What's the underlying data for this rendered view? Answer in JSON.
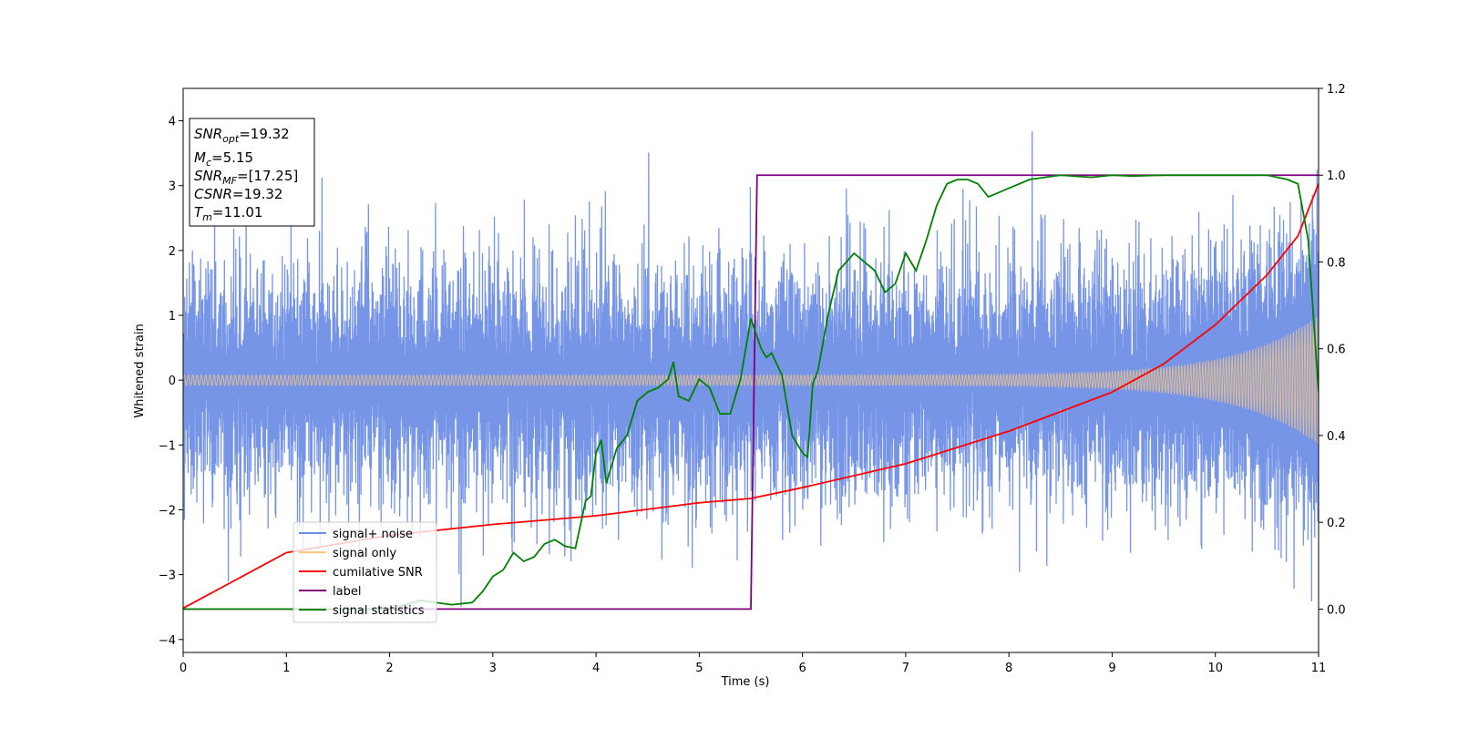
{
  "chart_data": {
    "type": "line",
    "xlabel": "Time (s)",
    "ylabel": "Whitened strain",
    "xlim": [
      0,
      11
    ],
    "ylim": [
      -4.2,
      4.5
    ],
    "y2lim": [
      -0.1,
      1.2
    ],
    "x_ticks": [
      "0",
      "1",
      "2",
      "3",
      "4",
      "5",
      "6",
      "7",
      "8",
      "9",
      "10",
      "11"
    ],
    "y_ticks": [
      "−4",
      "−3",
      "−2",
      "−1",
      "0",
      "1",
      "2",
      "3",
      "4"
    ],
    "y2_ticks": [
      "0.0",
      "0.2",
      "0.4",
      "0.6",
      "0.8",
      "1.0",
      "1.2"
    ],
    "grid": false,
    "legend_placement": "lower-left",
    "info_box": {
      "lines": [
        {
          "base": "SNR",
          "sub": "opt",
          "rest": "=19.32"
        },
        {
          "base": "M",
          "sub": "c",
          "rest": "=5.15"
        },
        {
          "base": "SNR",
          "sub": "MF",
          "rest": "=[17.25]"
        },
        {
          "base": "CSNR",
          "sub": "",
          "rest": "=19.32"
        },
        {
          "base": "T",
          "sub": "m",
          "rest": "=11.01"
        }
      ]
    },
    "series": [
      {
        "name": "signal+ noise",
        "color": "#6f8fe6",
        "axis": "left",
        "kind": "noise band",
        "envelope_std": 0.85,
        "extremes": [
          -3.8,
          4.2
        ]
      },
      {
        "name": "signal only",
        "color": "#ffc87c",
        "axis": "left",
        "kind": "chirp",
        "amplitude_start": 0.08,
        "amplitude_end": 1.0
      },
      {
        "name": "cumilative SNR",
        "color": "#ff0000",
        "axis": "right",
        "x": [
          0,
          1,
          2,
          3,
          4,
          5,
          5.5,
          6,
          7,
          8,
          9,
          9.5,
          10,
          10.5,
          10.8,
          11
        ],
        "y": [
          0.002,
          0.13,
          0.17,
          0.195,
          0.215,
          0.245,
          0.255,
          0.28,
          0.335,
          0.41,
          0.5,
          0.565,
          0.655,
          0.77,
          0.86,
          0.98
        ]
      },
      {
        "name": "label",
        "color": "#800080",
        "axis": "right",
        "x": [
          0,
          5.5,
          5.56,
          11
        ],
        "y": [
          0,
          0,
          1,
          1
        ]
      },
      {
        "name": "signal statistics",
        "color": "#008000",
        "axis": "right",
        "x": [
          0,
          0.5,
          1,
          1.5,
          2,
          2.3,
          2.6,
          2.8,
          2.9,
          3,
          3.1,
          3.2,
          3.3,
          3.4,
          3.5,
          3.6,
          3.7,
          3.8,
          3.9,
          3.95,
          4,
          4.05,
          4.1,
          4.15,
          4.2,
          4.3,
          4.4,
          4.5,
          4.6,
          4.7,
          4.75,
          4.8,
          4.9,
          5,
          5.1,
          5.2,
          5.3,
          5.4,
          5.5,
          5.6,
          5.65,
          5.7,
          5.8,
          5.9,
          6,
          6.05,
          6.1,
          6.15,
          6.25,
          6.35,
          6.5,
          6.6,
          6.7,
          6.8,
          6.9,
          7,
          7.1,
          7.2,
          7.3,
          7.4,
          7.5,
          7.6,
          7.7,
          7.8,
          7.9,
          8,
          8.2,
          8.5,
          8.8,
          9,
          9.2,
          9.5,
          10,
          10.5,
          10.7,
          10.8,
          10.9,
          11
        ],
        "y": [
          0.0,
          0.0,
          0.0,
          0.0,
          0.0,
          0.02,
          0.01,
          0.015,
          0.04,
          0.075,
          0.09,
          0.13,
          0.11,
          0.12,
          0.15,
          0.16,
          0.145,
          0.14,
          0.25,
          0.26,
          0.36,
          0.39,
          0.29,
          0.33,
          0.37,
          0.4,
          0.48,
          0.5,
          0.51,
          0.53,
          0.57,
          0.49,
          0.48,
          0.53,
          0.51,
          0.45,
          0.45,
          0.53,
          0.67,
          0.6,
          0.58,
          0.59,
          0.54,
          0.4,
          0.36,
          0.35,
          0.52,
          0.55,
          0.68,
          0.78,
          0.82,
          0.8,
          0.78,
          0.73,
          0.75,
          0.82,
          0.78,
          0.85,
          0.93,
          0.98,
          0.99,
          0.99,
          0.98,
          0.95,
          0.96,
          0.97,
          0.99,
          1.0,
          0.995,
          1.0,
          0.998,
          1.0,
          1.0,
          1.0,
          0.99,
          0.98,
          0.85,
          0.5
        ]
      }
    ]
  }
}
